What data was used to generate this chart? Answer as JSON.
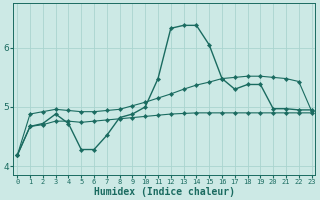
{
  "xlabel": "Humidex (Indice chaleur)",
  "ylabel": "",
  "bg_color": "#cce9e5",
  "grid_color": "#aad4cf",
  "line_color": "#1a6b60",
  "x": [
    0,
    1,
    2,
    3,
    4,
    5,
    6,
    7,
    8,
    9,
    10,
    11,
    12,
    13,
    14,
    15,
    16,
    17,
    18,
    19,
    20,
    21,
    22,
    23
  ],
  "y_main": [
    4.18,
    4.67,
    4.72,
    4.88,
    4.72,
    4.28,
    4.28,
    4.52,
    4.82,
    4.88,
    5.0,
    5.48,
    6.33,
    6.38,
    6.38,
    6.05,
    5.48,
    5.3,
    5.38,
    5.38,
    4.97,
    4.97,
    4.95,
    4.95
  ],
  "y_upper": [
    4.18,
    4.88,
    4.92,
    4.96,
    4.94,
    4.92,
    4.92,
    4.94,
    4.96,
    5.02,
    5.08,
    5.15,
    5.22,
    5.3,
    5.37,
    5.42,
    5.48,
    5.5,
    5.52,
    5.52,
    5.5,
    5.48,
    5.43,
    4.93
  ],
  "y_lower": [
    4.18,
    4.67,
    4.7,
    4.76,
    4.76,
    4.74,
    4.76,
    4.78,
    4.8,
    4.82,
    4.84,
    4.86,
    4.88,
    4.89,
    4.9,
    4.9,
    4.9,
    4.9,
    4.9,
    4.9,
    4.9,
    4.9,
    4.9,
    4.9
  ],
  "xlim": [
    -0.3,
    23.3
  ],
  "ylim": [
    3.85,
    6.75
  ],
  "yticks": [
    4,
    5,
    6
  ],
  "xticks": [
    0,
    1,
    2,
    3,
    4,
    5,
    6,
    7,
    8,
    9,
    10,
    11,
    12,
    13,
    14,
    15,
    16,
    17,
    18,
    19,
    20,
    21,
    22,
    23
  ]
}
